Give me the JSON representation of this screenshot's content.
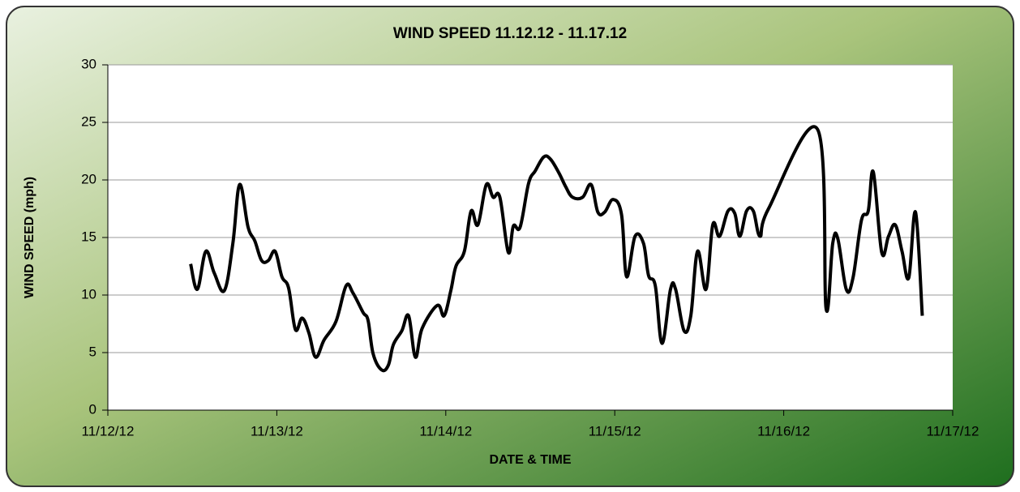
{
  "chart_data": {
    "type": "line",
    "title": "WIND SPEED 11.12.12 - 11.17.12",
    "x_label": "DATE & TIME",
    "y_label": "WIND SPEED (mph)",
    "x": [
      0.49,
      0.53,
      0.58,
      0.63,
      0.69,
      0.74,
      0.78,
      0.83,
      0.87,
      0.91,
      0.95,
      0.99,
      1.03,
      1.07,
      1.11,
      1.15,
      1.19,
      1.23,
      1.28,
      1.35,
      1.41,
      1.45,
      1.51,
      1.54,
      1.57,
      1.62,
      1.66,
      1.69,
      1.74,
      1.78,
      1.82,
      1.86,
      1.95,
      1.99,
      2.03,
      2.06,
      2.11,
      2.15,
      2.19,
      2.24,
      2.28,
      2.32,
      2.37,
      2.4,
      2.44,
      2.49,
      2.53,
      2.58,
      2.62,
      2.67,
      2.71,
      2.75,
      2.81,
      2.86,
      2.9,
      2.94,
      2.99,
      3.04,
      3.07,
      3.12,
      3.17,
      3.2,
      3.24,
      3.28,
      3.33,
      3.36,
      3.41,
      3.45,
      3.49,
      3.54,
      3.58,
      3.62,
      3.67,
      3.71,
      3.74,
      3.78,
      3.82,
      3.86,
      3.91,
      4.2,
      4.25,
      4.29,
      4.32,
      4.37,
      4.41,
      4.46,
      4.5,
      4.53,
      4.58,
      4.62,
      4.66,
      4.7,
      4.74,
      4.78,
      4.82
    ],
    "series": [
      {
        "name": "WIND SPEED",
        "color": "#000000",
        "values": [
          12.7,
          10.5,
          13.8,
          11.9,
          10.4,
          14.5,
          19.6,
          15.9,
          14.7,
          13.0,
          13.0,
          13.8,
          11.6,
          10.6,
          7.0,
          8.0,
          6.7,
          4.6,
          6.1,
          7.7,
          10.8,
          10.2,
          8.5,
          7.8,
          4.9,
          3.5,
          3.9,
          5.7,
          6.9,
          8.2,
          4.6,
          7.1,
          9.1,
          8.2,
          10.4,
          12.5,
          13.8,
          17.3,
          16.1,
          19.6,
          18.5,
          18.5,
          13.7,
          16.0,
          15.9,
          19.7,
          20.8,
          22.0,
          21.8,
          20.6,
          19.4,
          18.5,
          18.5,
          19.6,
          17.2,
          17.2,
          18.3,
          17.0,
          11.6,
          15.1,
          14.5,
          11.7,
          10.8,
          5.8,
          10.5,
          10.5,
          6.9,
          8.2,
          13.8,
          10.5,
          16.1,
          15.1,
          17.3,
          17.1,
          15.1,
          17.3,
          17.3,
          15.1,
          17.5,
          24.4,
          8.9,
          14.5,
          14.9,
          10.5,
          11.5,
          16.5,
          17.3,
          20.7,
          13.7,
          15.1,
          16.1,
          13.8,
          11.5,
          17.2,
          8.2
        ]
      }
    ],
    "xlim": [
      0,
      5
    ],
    "xticks": [
      {
        "value": 0,
        "label": "11/12/12"
      },
      {
        "value": 1,
        "label": "11/13/12"
      },
      {
        "value": 2,
        "label": "11/14/12"
      },
      {
        "value": 3,
        "label": "11/15/12"
      },
      {
        "value": 4,
        "label": "11/16/12"
      },
      {
        "value": 5,
        "label": "11/17/12"
      }
    ],
    "ylim": [
      0,
      30
    ],
    "yticks": [
      0,
      5,
      10,
      15,
      20,
      25,
      30
    ],
    "grid": true
  }
}
